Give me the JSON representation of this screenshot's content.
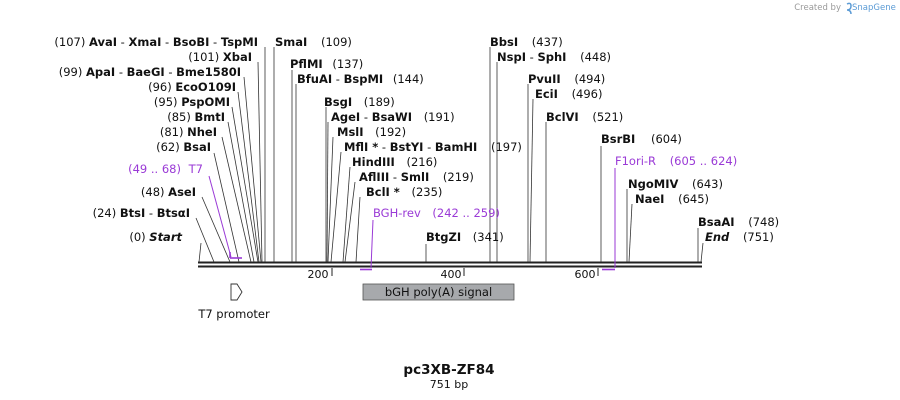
{
  "credit": {
    "prefix": "Created by",
    "brand": "SnapGene"
  },
  "map": {
    "name": "pc3XB-ZF84",
    "length_label": "751 bp"
  },
  "ruler": {
    "ticks": [
      "200",
      "400",
      "600"
    ]
  },
  "sites": [
    {
      "pos": "(107)",
      "names": [
        "AvaI",
        "XmaI",
        "BsoBI",
        "TspMI"
      ]
    },
    {
      "names": [
        "SmaI"
      ],
      "pos": "(109)"
    },
    {
      "pos": "(101)",
      "names": [
        "XbaI"
      ]
    },
    {
      "names": [
        "PflMI"
      ],
      "pos": "(137)"
    },
    {
      "pos": "(99)",
      "names": [
        "ApaI",
        "BaeGI",
        "Bme1580I"
      ]
    },
    {
      "names": [
        "BfuAI",
        "BspMI"
      ],
      "pos": "(144)"
    },
    {
      "pos": "(96)",
      "names": [
        "EcoO109I"
      ]
    },
    {
      "pos": "(95)",
      "names": [
        "PspOMI"
      ]
    },
    {
      "names": [
        "BsgI"
      ],
      "pos": "(189)"
    },
    {
      "pos": "(85)",
      "names": [
        "BmtI"
      ]
    },
    {
      "names": [
        "AgeI",
        "BsaWI"
      ],
      "pos": "(191)"
    },
    {
      "pos": "(81)",
      "names": [
        "NheI"
      ]
    },
    {
      "names": [
        "MslI"
      ],
      "pos": "(192)"
    },
    {
      "pos": "(62)",
      "names": [
        "BsaI"
      ]
    },
    {
      "names": [
        "MflI *",
        "BstYI",
        "BamHI"
      ],
      "pos": "(197)"
    },
    {
      "names": [
        "HindIII"
      ],
      "pos": "(216)"
    },
    {
      "names": [
        "AflIII",
        "SmlI"
      ],
      "pos": "(219)"
    },
    {
      "pos": "(48)",
      "names": [
        "AseI"
      ]
    },
    {
      "names": [
        "BclI *"
      ],
      "pos": "(235)"
    },
    {
      "pos": "(24)",
      "names": [
        "BtsI",
        "BtsαI"
      ]
    },
    {
      "pos": "(0)",
      "names": [
        "Start"
      ]
    },
    {
      "names": [
        "BtgZI"
      ],
      "pos": "(341)"
    },
    {
      "names": [
        "BbsI"
      ],
      "pos": "(437)"
    },
    {
      "names": [
        "NspI",
        "SphI"
      ],
      "pos": "(448)"
    },
    {
      "names": [
        "PvuII"
      ],
      "pos": "(494)"
    },
    {
      "names": [
        "EciI"
      ],
      "pos": "(496)"
    },
    {
      "names": [
        "BclVI"
      ],
      "pos": "(521)"
    },
    {
      "names": [
        "BsrBI"
      ],
      "pos": "(604)"
    },
    {
      "names": [
        "NgoMIV"
      ],
      "pos": "(643)"
    },
    {
      "names": [
        "NaeI"
      ],
      "pos": "(645)"
    },
    {
      "names": [
        "BsaAI"
      ],
      "pos": "(748)"
    },
    {
      "names": [
        "End"
      ],
      "pos": "(751)"
    }
  ],
  "primers": [
    {
      "name": "T7",
      "range": "(49 .. 68)"
    },
    {
      "name": "BGH-rev",
      "range": "(242 .. 259)"
    },
    {
      "name": "F1ori-R",
      "range": "(605 .. 624)"
    }
  ],
  "features": [
    {
      "name": "bGH poly(A) signal"
    },
    {
      "name": "T7 promoter"
    }
  ],
  "colors": {
    "primer": "#9a3ad6",
    "feature_fill": "#a7a9ac",
    "backbone": "#222222"
  },
  "icons": {
    "credit": "snapgene-logo-icon",
    "promoter": "arrow-right-icon"
  }
}
